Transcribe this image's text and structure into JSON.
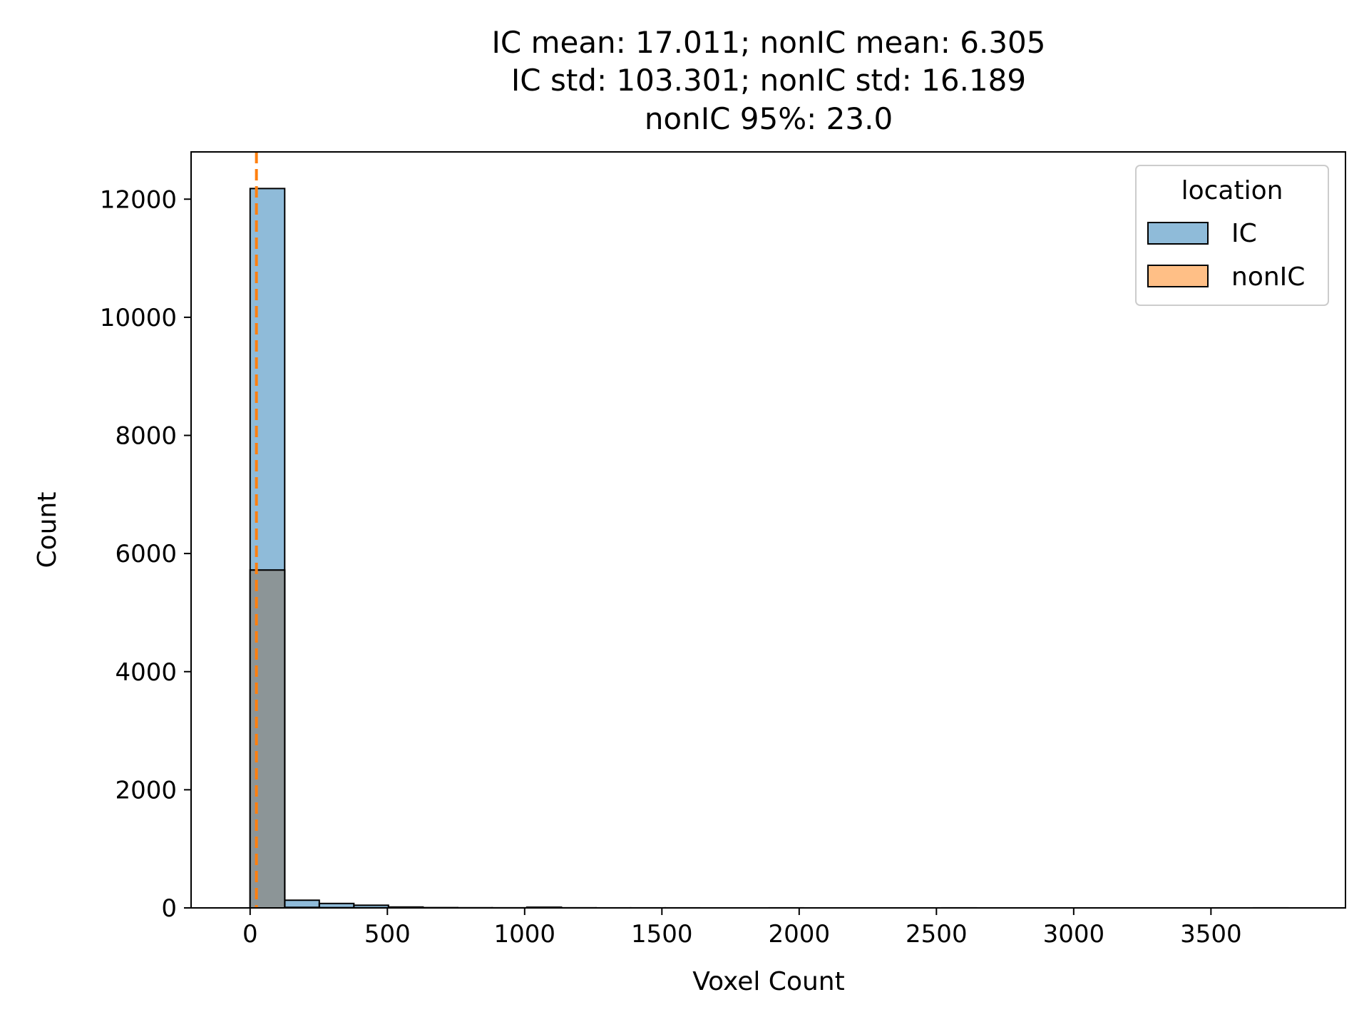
{
  "chart_data": {
    "type": "bar",
    "title_lines": [
      "IC mean: 17.011; nonIC mean: 6.305",
      "IC std: 103.301; nonIC std: 16.189",
      "nonIC 95%: 23.0"
    ],
    "xlabel": "Voxel Count",
    "ylabel": "Count",
    "xlim": [
      -215,
      3990
    ],
    "ylim": [
      0,
      12800
    ],
    "x_ticks": [
      0,
      500,
      1000,
      1500,
      2000,
      2500,
      3000,
      3500
    ],
    "x_tick_labels": [
      "0",
      "500",
      "1000",
      "1500",
      "2000",
      "2500",
      "3000",
      "3500"
    ],
    "y_ticks": [
      0,
      2000,
      4000,
      6000,
      8000,
      10000,
      12000
    ],
    "y_tick_labels": [
      "0",
      "2000",
      "4000",
      "6000",
      "8000",
      "10000",
      "12000"
    ],
    "grid": false,
    "legend": {
      "title": "location",
      "placement": "top-right",
      "entries": [
        "IC",
        "nonIC"
      ]
    },
    "colors": {
      "IC": "#1f77b4",
      "nonIC": "#ff7f0e",
      "overlap": "#8c9597",
      "vline": "#ff7f0e"
    },
    "bin_width": 126,
    "bin_starts": [
      0,
      126,
      252,
      378,
      504,
      630,
      756,
      882,
      1008,
      1134,
      1260,
      1386,
      1512,
      1638,
      1764,
      1890,
      2016,
      2142,
      2268,
      2394,
      2520,
      2646,
      2772,
      2898,
      3024,
      3150,
      3276,
      3402,
      3528,
      3654
    ],
    "series": [
      {
        "name": "IC",
        "values": [
          12180,
          130,
          75,
          45,
          15,
          5,
          3,
          2,
          12,
          2,
          1,
          1,
          1,
          0,
          0,
          1,
          0,
          0,
          0,
          0,
          1,
          0,
          0,
          0,
          0,
          0,
          0,
          0,
          0,
          1
        ]
      },
      {
        "name": "nonIC",
        "values": [
          5720,
          8,
          3,
          1,
          0,
          0,
          0,
          0,
          0,
          0,
          0,
          0,
          0,
          0,
          0,
          0,
          0,
          0,
          0,
          0,
          0,
          0,
          0,
          0,
          0,
          0,
          0,
          0,
          0,
          0
        ]
      }
    ],
    "vline_x": 23.0
  }
}
